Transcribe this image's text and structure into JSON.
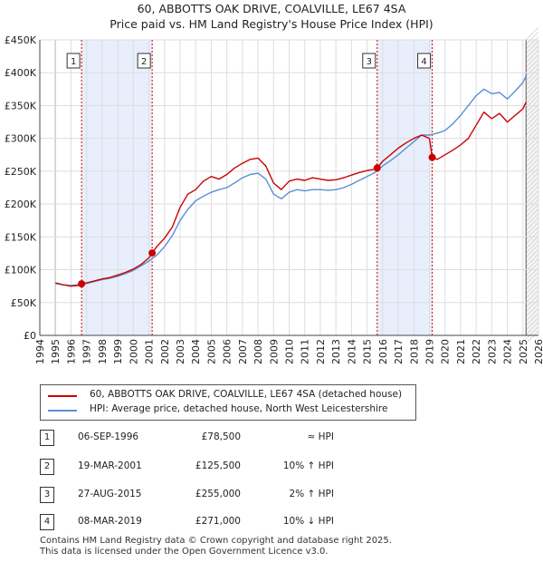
{
  "title": "60, ABBOTTS OAK DRIVE, COALVILLE, LE67 4SA",
  "subtitle": "Price paid vs. HM Land Registry's House Price Index (HPI)",
  "colors": {
    "property": "#cc0000",
    "hpi": "#5b8ed6",
    "shade": "#e8eefb",
    "grid": "#dddddd"
  },
  "legend": {
    "property": "60, ABBOTTS OAK DRIVE, COALVILLE, LE67 4SA (detached house)",
    "hpi": "HPI: Average price, detached house, North West Leicestershire"
  },
  "transactions": [
    {
      "num": "1",
      "date": "06-SEP-1996",
      "price": "£78,500",
      "rel": "≈ HPI"
    },
    {
      "num": "2",
      "date": "19-MAR-2001",
      "price": "£125,500",
      "rel": "10% ↑ HPI"
    },
    {
      "num": "3",
      "date": "27-AUG-2015",
      "price": "£255,000",
      "rel": "2% ↑ HPI"
    },
    {
      "num": "4",
      "date": "08-MAR-2019",
      "price": "£271,000",
      "rel": "10% ↓ HPI"
    }
  ],
  "footer": {
    "line1": "Contains HM Land Registry data © Crown copyright and database right 2025.",
    "line2": "This data is licensed under the Open Government Licence v3.0."
  },
  "chart_data": {
    "type": "line",
    "xlim": [
      1994,
      2026
    ],
    "ylim": [
      0,
      450000
    ],
    "x_ticks": [
      1994,
      1995,
      1996,
      1997,
      1998,
      1999,
      2000,
      2001,
      2002,
      2003,
      2004,
      2005,
      2006,
      2007,
      2008,
      2009,
      2010,
      2011,
      2012,
      2013,
      2014,
      2015,
      2016,
      2017,
      2018,
      2019,
      2020,
      2021,
      2022,
      2023,
      2024,
      2025,
      2026
    ],
    "y_ticks": [
      {
        "value": 0,
        "label": "£0"
      },
      {
        "value": 50000,
        "label": "£50K"
      },
      {
        "value": 100000,
        "label": "£100K"
      },
      {
        "value": 150000,
        "label": "£150K"
      },
      {
        "value": 200000,
        "label": "£200K"
      },
      {
        "value": 250000,
        "label": "£250K"
      },
      {
        "value": 300000,
        "label": "£300K"
      },
      {
        "value": 350000,
        "label": "£350K"
      },
      {
        "value": 400000,
        "label": "£400K"
      },
      {
        "value": 450000,
        "label": "£450K"
      }
    ],
    "data_start": 1995.0,
    "data_end": 2025.2,
    "shaded_ranges": [
      [
        1996.68,
        2001.21
      ],
      [
        2015.65,
        2019.18
      ]
    ],
    "sales": [
      {
        "label": "1",
        "x": 1996.68,
        "y": 78500
      },
      {
        "label": "2",
        "x": 2001.21,
        "y": 125500
      },
      {
        "label": "3",
        "x": 2015.65,
        "y": 255000
      },
      {
        "label": "4",
        "x": 2019.18,
        "y": 271000
      }
    ],
    "series": [
      {
        "name": "60, ABBOTTS OAK DRIVE, COALVILLE, LE67 4SA (detached house)",
        "color": "#cc0000",
        "x": [
          1995.0,
          1995.5,
          1996.0,
          1996.5,
          1996.68,
          1997.0,
          1997.5,
          1998.0,
          1998.5,
          1999.0,
          1999.5,
          2000.0,
          2000.5,
          2001.0,
          2001.21,
          2001.5,
          2002.0,
          2002.5,
          2003.0,
          2003.5,
          2004.0,
          2004.5,
          2005.0,
          2005.5,
          2006.0,
          2006.5,
          2007.0,
          2007.5,
          2008.0,
          2008.5,
          2009.0,
          2009.5,
          2010.0,
          2010.5,
          2011.0,
          2011.5,
          2012.0,
          2012.5,
          2013.0,
          2013.5,
          2014.0,
          2014.5,
          2015.0,
          2015.5,
          2015.65,
          2016.0,
          2016.5,
          2017.0,
          2017.5,
          2018.0,
          2018.5,
          2019.0,
          2019.18,
          2019.5,
          2020.0,
          2020.5,
          2021.0,
          2021.5,
          2022.0,
          2022.5,
          2023.0,
          2023.5,
          2024.0,
          2024.5,
          2025.0,
          2025.2
        ],
        "values": [
          80000,
          77000,
          75000,
          76000,
          78500,
          80000,
          83000,
          86000,
          88000,
          92000,
          96000,
          101000,
          108000,
          118000,
          125500,
          135000,
          148000,
          165000,
          195000,
          215000,
          222000,
          235000,
          242000,
          238000,
          245000,
          255000,
          262000,
          268000,
          270000,
          258000,
          232000,
          222000,
          235000,
          238000,
          236000,
          240000,
          238000,
          236000,
          237000,
          240000,
          244000,
          248000,
          251000,
          253000,
          255000,
          265000,
          275000,
          285000,
          293000,
          300000,
          305000,
          300000,
          271000,
          268000,
          275000,
          282000,
          290000,
          300000,
          320000,
          340000,
          330000,
          338000,
          325000,
          335000,
          345000,
          355000
        ]
      },
      {
        "name": "HPI: Average price, detached house, North West Leicestershire",
        "color": "#5b8ed6",
        "x": [
          1995.0,
          1995.5,
          1996.0,
          1996.5,
          1997.0,
          1997.5,
          1998.0,
          1998.5,
          1999.0,
          1999.5,
          2000.0,
          2000.5,
          2001.0,
          2001.5,
          2002.0,
          2002.5,
          2003.0,
          2003.5,
          2004.0,
          2004.5,
          2005.0,
          2005.5,
          2006.0,
          2006.5,
          2007.0,
          2007.5,
          2008.0,
          2008.5,
          2009.0,
          2009.5,
          2010.0,
          2010.5,
          2011.0,
          2011.5,
          2012.0,
          2012.5,
          2013.0,
          2013.5,
          2014.0,
          2014.5,
          2015.0,
          2015.5,
          2016.0,
          2016.5,
          2017.0,
          2017.5,
          2018.0,
          2018.5,
          2019.0,
          2019.5,
          2020.0,
          2020.5,
          2021.0,
          2021.5,
          2022.0,
          2022.5,
          2023.0,
          2023.5,
          2024.0,
          2024.5,
          2025.0,
          2025.2
        ],
        "values": [
          79000,
          77000,
          76000,
          77500,
          79000,
          82000,
          85000,
          87000,
          90000,
          94000,
          99000,
          106000,
          113000,
          122000,
          135000,
          152000,
          175000,
          192000,
          205000,
          212000,
          218000,
          222000,
          225000,
          232000,
          240000,
          245000,
          247000,
          238000,
          215000,
          208000,
          218000,
          222000,
          220000,
          222000,
          222000,
          221000,
          222000,
          225000,
          230000,
          236000,
          242000,
          248000,
          258000,
          266000,
          275000,
          285000,
          295000,
          305000,
          305000,
          308000,
          312000,
          322000,
          335000,
          350000,
          365000,
          375000,
          368000,
          370000,
          360000,
          372000,
          385000,
          395000
        ]
      }
    ]
  }
}
